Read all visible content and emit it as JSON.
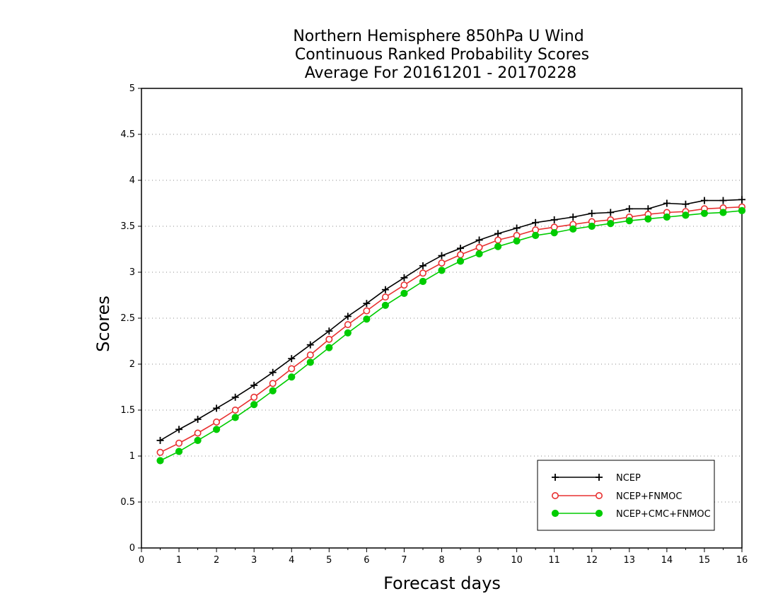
{
  "chart_data": {
    "type": "line",
    "title_lines": [
      "Northern Hemisphere 850hPa U Wind",
      "Continuous Ranked Probability Scores",
      "Average For 20161201 - 20170228"
    ],
    "xlabel": "Forecast days",
    "ylabel": "Scores",
    "xlim": [
      0,
      16
    ],
    "ylim": [
      0,
      5
    ],
    "x_ticks": [
      "0",
      "1",
      "2",
      "3",
      "4",
      "5",
      "6",
      "7",
      "8",
      "9",
      "10",
      "11",
      "12",
      "13",
      "14",
      "15",
      "16"
    ],
    "y_ticks": [
      "0",
      "0.5",
      "1",
      "1.5",
      "2",
      "2.5",
      "3",
      "3.5",
      "4",
      "4.5",
      "5"
    ],
    "grid": true,
    "legend_position": "bottom-right",
    "x": [
      0.5,
      1,
      1.5,
      2,
      2.5,
      3,
      3.5,
      4,
      4.5,
      5,
      5.5,
      6,
      6.5,
      7,
      7.5,
      8,
      8.5,
      9,
      9.5,
      10,
      10.5,
      11,
      11.5,
      12,
      12.5,
      13,
      13.5,
      14,
      14.5,
      15,
      15.5,
      16
    ],
    "series": [
      {
        "name": "NCEP",
        "color": "#000000",
        "marker": "plus",
        "values": [
          1.17,
          1.29,
          1.4,
          1.52,
          1.64,
          1.77,
          1.91,
          2.06,
          2.21,
          2.36,
          2.52,
          2.66,
          2.81,
          2.94,
          3.07,
          3.18,
          3.26,
          3.35,
          3.42,
          3.48,
          3.54,
          3.57,
          3.6,
          3.64,
          3.65,
          3.69,
          3.69,
          3.75,
          3.74,
          3.78,
          3.78,
          3.79
        ]
      },
      {
        "name": "NCEP+FNMOC",
        "color": "#e83030",
        "marker": "open-circle",
        "values": [
          1.04,
          1.14,
          1.25,
          1.37,
          1.5,
          1.64,
          1.79,
          1.95,
          2.1,
          2.27,
          2.43,
          2.58,
          2.73,
          2.86,
          2.99,
          3.1,
          3.19,
          3.27,
          3.35,
          3.4,
          3.46,
          3.49,
          3.52,
          3.55,
          3.57,
          3.6,
          3.63,
          3.65,
          3.66,
          3.69,
          3.7,
          3.71
        ]
      },
      {
        "name": "NCEP+CMC+FNMOC",
        "color": "#00cc00",
        "marker": "filled-circle",
        "values": [
          0.95,
          1.05,
          1.17,
          1.29,
          1.42,
          1.56,
          1.71,
          1.86,
          2.02,
          2.18,
          2.34,
          2.49,
          2.64,
          2.77,
          2.9,
          3.02,
          3.12,
          3.2,
          3.28,
          3.34,
          3.4,
          3.43,
          3.47,
          3.5,
          3.53,
          3.56,
          3.58,
          3.6,
          3.62,
          3.64,
          3.65,
          3.67
        ]
      }
    ]
  }
}
